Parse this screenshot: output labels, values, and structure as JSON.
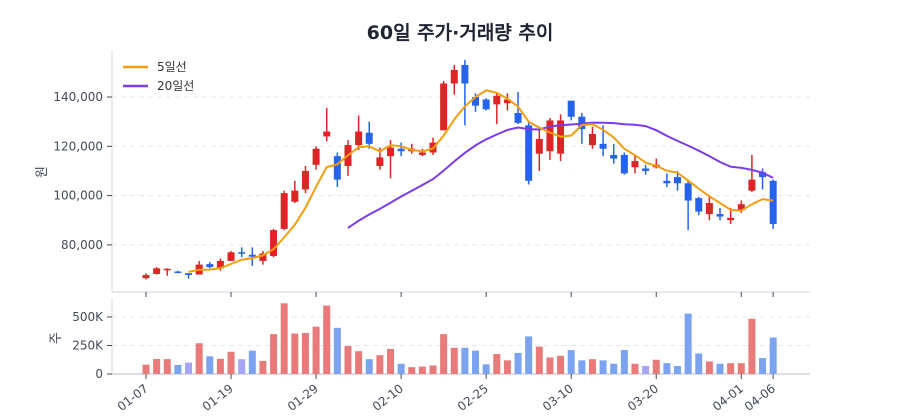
{
  "title": "60일 주가·거래량 추이",
  "legend": [
    {
      "label": "5일선",
      "color": "#f59e0b"
    },
    {
      "label": "20일선",
      "color": "#7c3aed"
    }
  ],
  "colors": {
    "up": "#dc2626",
    "down": "#2563eb",
    "up_volume": "#e87a7a",
    "down_volume": "#7ba3f0",
    "flat_volume": "#a5a5f5",
    "ma5": "#f59e0b",
    "ma20": "#7c3aed",
    "grid": "#e5e7eb"
  },
  "chart_data": [
    {
      "type": "candlestick",
      "title": "60일 주가·거래량 추이",
      "ylabel": "원",
      "ylim": [
        62000,
        157000
      ],
      "yticks": [
        80000,
        100000,
        120000,
        140000
      ],
      "ytick_labels": [
        "80,000",
        "100,000",
        "120,000",
        "140,000"
      ],
      "grid": true,
      "legend_position": "top-left",
      "x_tick_labels": [
        "01-07",
        "01-19",
        "01-29",
        "02-10",
        "02-25",
        "03-10",
        "03-20",
        "04-01",
        "04-06"
      ],
      "x_tick_indices": [
        0,
        8,
        16,
        24,
        32,
        40,
        48,
        56,
        59
      ],
      "ohlc": [
        [
          66500,
          68500,
          66000,
          67800
        ],
        [
          68200,
          71000,
          68000,
          70500
        ],
        [
          70000,
          70500,
          67500,
          70300
        ],
        [
          69200,
          69500,
          68500,
          68800
        ],
        [
          68500,
          68600,
          66300,
          67800
        ],
        [
          68000,
          73500,
          68000,
          72000
        ],
        [
          72200,
          73000,
          70500,
          71000
        ],
        [
          70500,
          74500,
          69500,
          73500
        ],
        [
          73500,
          77500,
          73500,
          77000
        ],
        [
          77000,
          79000,
          75000,
          76500
        ],
        [
          76000,
          79000,
          71500,
          75200
        ],
        [
          73500,
          77500,
          72000,
          76500
        ],
        [
          75500,
          86500,
          75000,
          86000
        ],
        [
          86500,
          102000,
          86000,
          101000
        ],
        [
          97500,
          106000,
          97000,
          102000
        ],
        [
          102500,
          112000,
          101000,
          110000
        ],
        [
          112500,
          120000,
          110500,
          119000
        ],
        [
          124000,
          135500,
          122000,
          126000
        ],
        [
          116000,
          117500,
          103500,
          106500
        ],
        [
          112000,
          122500,
          108000,
          120500
        ],
        [
          120500,
          132500,
          118500,
          126000
        ],
        [
          125500,
          130000,
          119000,
          121000
        ],
        [
          112000,
          119500,
          110500,
          115500
        ],
        [
          116000,
          122500,
          107000,
          119500
        ],
        [
          119000,
          121500,
          116000,
          118000
        ],
        [
          118000,
          121000,
          117000,
          119000
        ],
        [
          116500,
          119000,
          116000,
          117500
        ],
        [
          117500,
          123500,
          116500,
          121500
        ],
        [
          126500,
          146500,
          126500,
          145500
        ],
        [
          145500,
          153000,
          141000,
          151000
        ],
        [
          153000,
          155000,
          128500,
          145500
        ],
        [
          140000,
          141500,
          134000,
          136500
        ],
        [
          139000,
          139500,
          134500,
          135000
        ],
        [
          137000,
          141500,
          129000,
          140500
        ],
        [
          137500,
          141500,
          134500,
          139000
        ],
        [
          133500,
          142000,
          129000,
          129500
        ],
        [
          128500,
          130000,
          104500,
          106000
        ],
        [
          117000,
          127000,
          110000,
          123000
        ],
        [
          118000,
          131500,
          114500,
          130500
        ],
        [
          117000,
          133000,
          114000,
          130500
        ],
        [
          138500,
          138500,
          130500,
          132000
        ],
        [
          132000,
          133500,
          121000,
          127000
        ],
        [
          120500,
          128000,
          119000,
          125000
        ],
        [
          121000,
          128500,
          116000,
          119000
        ],
        [
          116500,
          121000,
          113000,
          115000
        ],
        [
          116500,
          117500,
          108500,
          109000
        ],
        [
          111500,
          116500,
          109000,
          114000
        ],
        [
          111000,
          112500,
          108500,
          110000
        ],
        [
          111500,
          115000,
          111000,
          112500
        ],
        [
          106000,
          109000,
          103500,
          105000
        ],
        [
          107500,
          110000,
          102000,
          105000
        ],
        [
          105000,
          106000,
          86000,
          98000
        ],
        [
          99000,
          99500,
          92000,
          93500
        ],
        [
          92500,
          100000,
          90000,
          97000
        ],
        [
          92500,
          95000,
          90000,
          91500
        ],
        [
          90000,
          95000,
          88500,
          91000
        ],
        [
          94000,
          98000,
          93000,
          96500
        ],
        [
          102000,
          116500,
          101500,
          106500
        ],
        [
          109500,
          111000,
          102500,
          107500
        ],
        [
          106000,
          106500,
          86500,
          88500
        ]
      ],
      "moving_averages": [
        {
          "name": "5일선",
          "period": 5
        },
        {
          "name": "20일선",
          "period": 20
        }
      ]
    },
    {
      "type": "bar",
      "ylabel": "주",
      "ylim": [
        0,
        650000
      ],
      "yticks": [
        0,
        250000,
        500000
      ],
      "ytick_labels": [
        "0",
        "250K",
        "500K"
      ],
      "grid": true,
      "volume": [
        82000,
        132000,
        130000,
        80000,
        100000,
        270000,
        155000,
        133000,
        195000,
        130000,
        205000,
        115000,
        350000,
        620000,
        355000,
        360000,
        415000,
        600000,
        405000,
        245000,
        200000,
        130000,
        165000,
        220000,
        90000,
        60000,
        65000,
        75000,
        350000,
        230000,
        230000,
        205000,
        85000,
        175000,
        120000,
        185000,
        330000,
        240000,
        145000,
        160000,
        210000,
        120000,
        130000,
        120000,
        90000,
        210000,
        90000,
        70000,
        125000,
        95000,
        70000,
        530000,
        180000,
        110000,
        90000,
        95000,
        95000,
        485000,
        140000,
        320000
      ],
      "volume_direction": [
        "up",
        "up",
        "up",
        "down",
        "flat",
        "up",
        "down",
        "up",
        "up",
        "flat",
        "down",
        "up",
        "up",
        "up",
        "up",
        "up",
        "up",
        "up",
        "down",
        "up",
        "up",
        "down",
        "up",
        "up",
        "down",
        "up",
        "up",
        "up",
        "up",
        "up",
        "down",
        "down",
        "down",
        "up",
        "up",
        "down",
        "down",
        "up",
        "up",
        "up",
        "down",
        "down",
        "up",
        "down",
        "down",
        "down",
        "up",
        "flat",
        "up",
        "down",
        "down",
        "down",
        "down",
        "up",
        "down",
        "up",
        "up",
        "up",
        "down",
        "down"
      ]
    }
  ]
}
